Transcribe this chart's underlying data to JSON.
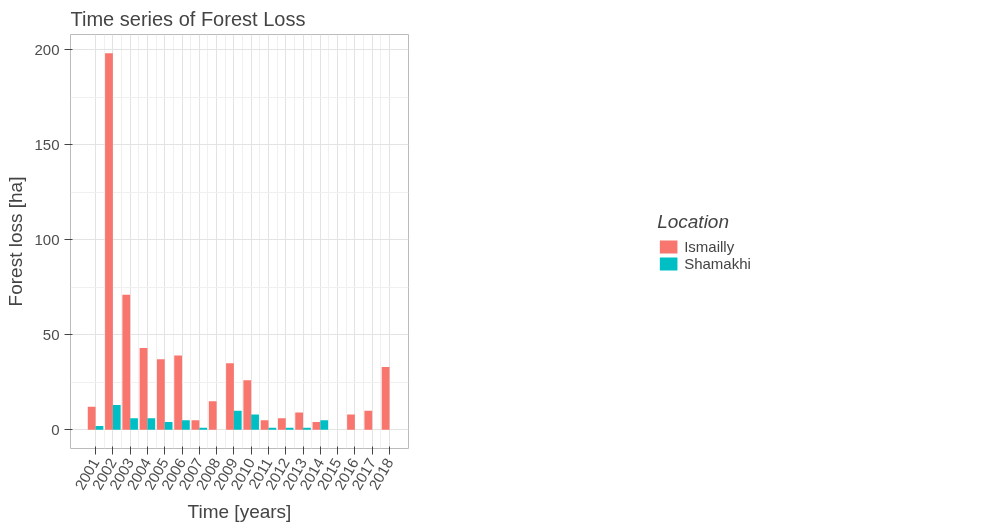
{
  "chart_data": {
    "type": "bar",
    "title": "Time series of Forest Loss",
    "xlabel": "Time [years]",
    "ylabel": "Forest loss [ha]",
    "legend_title": "Location",
    "x": [
      2001,
      2002,
      2003,
      2004,
      2005,
      2006,
      2007,
      2008,
      2009,
      2010,
      2011,
      2012,
      2013,
      2014,
      2015,
      2016,
      2017,
      2018
    ],
    "series": [
      {
        "name": "Ismailly",
        "color": "#f8766d",
        "values": [
          12,
          198,
          71,
          43,
          37,
          39,
          5,
          15,
          35,
          26,
          5,
          6,
          9,
          4,
          null,
          8,
          10,
          33
        ]
      },
      {
        "name": "Shamakhi",
        "color": "#00bfc4",
        "values": [
          2,
          13,
          6,
          6,
          4,
          5,
          1,
          null,
          10,
          8,
          1,
          1,
          1,
          5,
          null,
          null,
          null,
          null
        ]
      }
    ],
    "xlim": [
      1999.55,
      2019.1
    ],
    "xticks": [
      2001,
      2002,
      2003,
      2004,
      2005,
      2006,
      2007,
      2008,
      2009,
      2010,
      2011,
      2012,
      2013,
      2014,
      2015,
      2016,
      2017,
      2018
    ],
    "ylim": [
      -9.9,
      207.9
    ],
    "yticks": [
      0,
      50,
      100,
      150,
      200
    ],
    "grid": true,
    "legend": "right"
  }
}
